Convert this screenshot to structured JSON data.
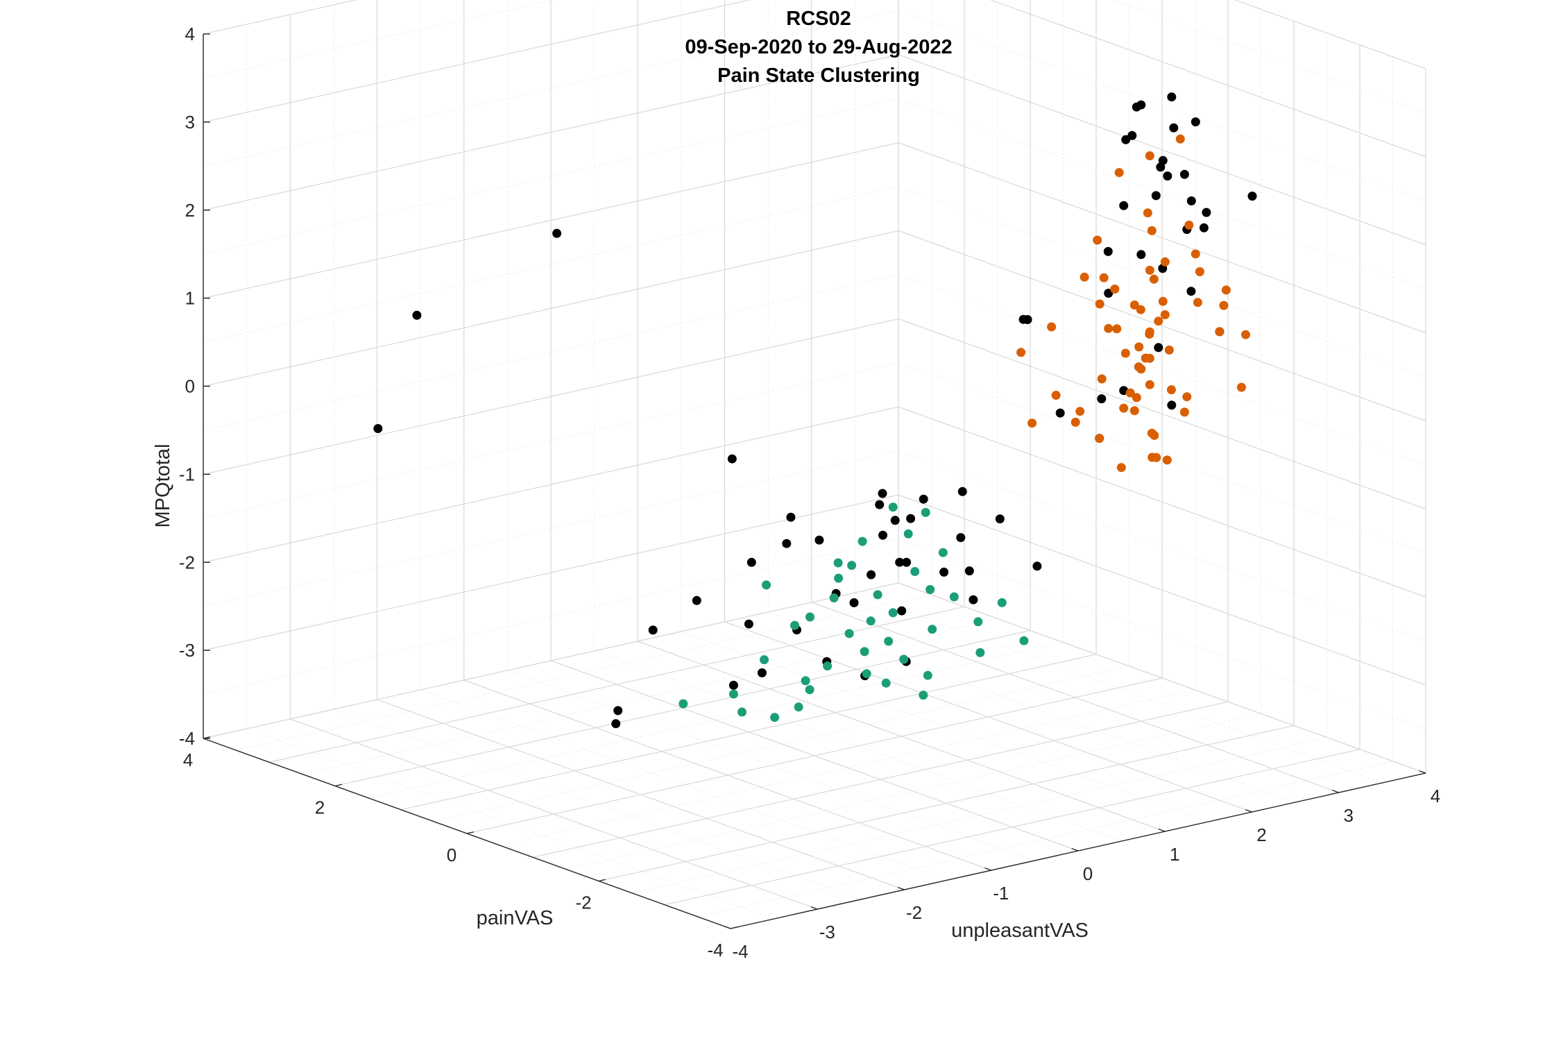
{
  "chart_data": {
    "type": "scatter3d",
    "title_lines": [
      "RCS02",
      "09-Sep-2020 to 29-Aug-2022",
      "Pain State Clustering"
    ],
    "xlabel": "unpleasantVAS",
    "ylabel": "painVAS",
    "zlabel": "MPQtotal",
    "xlim": [
      -4,
      4
    ],
    "ylim": [
      -4,
      4
    ],
    "zlim": [
      -4,
      4
    ],
    "xticks": [
      "-4",
      "-3",
      "-2",
      "-1",
      "0",
      "1",
      "2",
      "3",
      "4"
    ],
    "yticks": [
      "-4",
      "-2",
      "0",
      "2",
      "4"
    ],
    "zticks": [
      "-4",
      "-3",
      "-2",
      "-1",
      "0",
      "1",
      "2",
      "3",
      "4"
    ],
    "grid": true,
    "minor_grid": true,
    "series": [
      {
        "color": "#000000",
        "points": [
          [
            3.2,
            -1.2,
            3.1
          ],
          [
            3.0,
            -1.0,
            3.0
          ],
          [
            3.3,
            -1.1,
            2.7
          ],
          [
            3.1,
            -0.8,
            2.9
          ],
          [
            3.4,
            -1.3,
            2.8
          ],
          [
            2.9,
            -0.9,
            2.6
          ],
          [
            3.2,
            -0.6,
            2.5
          ],
          [
            3.1,
            -1.2,
            2.4
          ],
          [
            3.0,
            -1.4,
            2.3
          ],
          [
            3.3,
            -0.9,
            2.2
          ],
          [
            3.5,
            -1.0,
            2.1
          ],
          [
            3.2,
            -1.5,
            2.0
          ],
          [
            2.8,
            -1.0,
            1.9
          ],
          [
            3.4,
            -0.7,
            1.8
          ],
          [
            3.6,
            -1.2,
            1.7
          ],
          [
            3.3,
            -1.3,
            1.6
          ],
          [
            3.9,
            -1.5,
            1.9
          ],
          [
            3.0,
            -0.5,
            1.2
          ],
          [
            -1.6,
            1.8,
            1.8
          ],
          [
            -2.3,
            3.0,
            0.7
          ],
          [
            -2.9,
            2.8,
            -0.4
          ],
          [
            0.2,
            -1.7,
            -1.5
          ],
          [
            -0.2,
            -1.3,
            -1.1
          ],
          [
            0.1,
            -0.9,
            -0.8
          ],
          [
            -0.4,
            -0.6,
            -1.3
          ],
          [
            -0.8,
            -0.1,
            -1.6
          ],
          [
            -0.5,
            -0.3,
            -1.1
          ],
          [
            -0.7,
            -0.5,
            -1.3
          ],
          [
            0.9,
            0.2,
            -1.4
          ],
          [
            1.4,
            -0.4,
            -1.2
          ],
          [
            1.0,
            -0.9,
            -1.5
          ],
          [
            1.3,
            -1.1,
            -1.3
          ],
          [
            0.7,
            -0.3,
            -1.4
          ],
          [
            0.5,
            -0.8,
            -1.2
          ],
          [
            0.3,
            -1.0,
            -1.6
          ],
          [
            0.8,
            -0.6,
            -1.1
          ],
          [
            -0.9,
            0.6,
            -2.2
          ],
          [
            -1.1,
            1.0,
            -2.6
          ],
          [
            0.5,
            -0.2,
            -2.0
          ],
          [
            0.6,
            -0.5,
            -1.8
          ],
          [
            1.1,
            -0.9,
            -1.9
          ],
          [
            1.5,
            -1.4,
            -1.8
          ],
          [
            -0.3,
            0.6,
            -2.6
          ],
          [
            0.1,
            0.4,
            -2.7
          ],
          [
            0.4,
            0.2,
            -2.3
          ],
          [
            0.7,
            -0.4,
            -2.4
          ],
          [
            1.6,
            -0.3,
            -2.5
          ],
          [
            0.6,
            -0.6,
            -2.9
          ],
          [
            0.2,
            -0.5,
            -3.0
          ],
          [
            -0.3,
            0.4,
            -3.1
          ],
          [
            -0.4,
            0.7,
            -3.3
          ],
          [
            -1.2,
            1.4,
            -3.6
          ],
          [
            -1.3,
            1.3,
            -3.7
          ],
          [
            0.9,
            1.0,
            -3.4
          ],
          [
            1.1,
            2.7,
            -1.6
          ],
          [
            2.6,
            -0.3,
            -0.6
          ],
          [
            3.0,
            -0.4,
            -0.5
          ],
          [
            2.3,
            -0.2,
            0.5
          ],
          [
            2.1,
            -0.4,
            0.6
          ],
          [
            3.4,
            -0.8,
            1.0
          ],
          [
            3.5,
            -1.1,
            0.8
          ],
          [
            3.6,
            -1.4,
            0.4
          ],
          [
            2.8,
            -1.0,
            -0.2
          ],
          [
            3.2,
            -1.2,
            -0.4
          ],
          [
            2.7,
            -0.9,
            0.9
          ],
          [
            3.8,
            -0.9,
            1.4
          ],
          [
            3.0,
            -1.0,
            1.3
          ],
          [
            3.2,
            -1.0,
            0.2
          ],
          [
            2.9,
            -0.5,
            -0.9
          ],
          [
            0.0,
            -0.6,
            -2.1
          ]
        ]
      },
      {
        "color": "#d95f02",
        "points": [
          [
            3.1,
            -1.0,
            2.4
          ],
          [
            3.3,
            -1.2,
            2.6
          ],
          [
            2.9,
            -0.8,
            2.2
          ],
          [
            3.0,
            -1.1,
            1.8
          ],
          [
            3.2,
            -0.9,
            1.5
          ],
          [
            3.4,
            -1.3,
            1.3
          ],
          [
            3.1,
            -1.0,
            1.1
          ],
          [
            2.8,
            -0.7,
            1.0
          ],
          [
            3.3,
            -0.8,
            0.9
          ],
          [
            3.0,
            -0.6,
            0.8
          ],
          [
            3.5,
            -1.2,
            0.7
          ],
          [
            3.2,
            -1.1,
            0.6
          ],
          [
            2.7,
            -0.9,
            0.5
          ],
          [
            3.6,
            -1.4,
            0.4
          ],
          [
            3.1,
            -0.5,
            0.3
          ],
          [
            2.9,
            -1.2,
            0.2
          ],
          [
            3.4,
            -0.9,
            0.1
          ],
          [
            3.0,
            -1.0,
            0.0
          ],
          [
            3.2,
            -0.7,
            -0.1
          ],
          [
            2.8,
            -1.1,
            -0.2
          ],
          [
            3.3,
            -1.3,
            -0.3
          ],
          [
            3.1,
            -0.8,
            -0.4
          ],
          [
            2.6,
            -0.6,
            -0.5
          ],
          [
            3.5,
            -1.0,
            -0.6
          ],
          [
            3.0,
            -1.2,
            -0.7
          ],
          [
            3.2,
            -0.9,
            -0.8
          ],
          [
            2.9,
            -0.5,
            -0.9
          ],
          [
            3.1,
            -1.1,
            -1.0
          ],
          [
            2.7,
            -0.8,
            -0.1
          ],
          [
            3.4,
            -0.6,
            0.2
          ],
          [
            3.6,
            -1.5,
            0.9
          ],
          [
            2.5,
            -0.3,
            0.4
          ],
          [
            2.4,
            -0.5,
            -0.3
          ],
          [
            3.7,
            -1.6,
            -0.2
          ],
          [
            3.8,
            -1.2,
            0.6
          ],
          [
            2.3,
            -0.1,
            0.1
          ],
          [
            3.9,
            -1.4,
            0.3
          ],
          [
            2.2,
            -0.4,
            -0.6
          ],
          [
            3.2,
            -1.0,
            0.5
          ],
          [
            3.0,
            -0.9,
            0.7
          ],
          [
            3.1,
            -1.0,
            -0.2
          ],
          [
            3.1,
            -1.0,
            0.1
          ],
          [
            3.1,
            -1.0,
            0.4
          ],
          [
            3.0,
            -0.9,
            -0.5
          ],
          [
            3.2,
            -1.1,
            1.2
          ],
          [
            2.8,
            -0.6,
            1.4
          ],
          [
            3.4,
            -1.2,
            1.6
          ],
          [
            2.6,
            -0.9,
            0.8
          ],
          [
            3.5,
            -0.8,
            -0.4
          ],
          [
            2.9,
            -1.3,
            -0.9
          ],
          [
            3.3,
            -1.0,
            -1.1
          ],
          [
            3.0,
            -0.7,
            -1.2
          ],
          [
            2.7,
            -0.4,
            -0.7
          ],
          [
            3.6,
            -1.1,
            1.0
          ],
          [
            2.5,
            -0.8,
            1.1
          ],
          [
            3.2,
            -0.5,
            0.0
          ],
          [
            2.9,
            -1.1,
            0.3
          ],
          [
            3.1,
            -1.2,
            0.8
          ],
          [
            3.3,
            -0.6,
            0.5
          ],
          [
            2.8,
            -1.0,
            -0.4
          ]
        ]
      },
      {
        "color": "#1b9e77",
        "points": [
          [
            0.6,
            -0.4,
            -1.2
          ],
          [
            0.9,
            -0.5,
            -1.3
          ],
          [
            0.4,
            -0.2,
            -1.6
          ],
          [
            0.7,
            -0.6,
            -1.9
          ],
          [
            0.2,
            -0.1,
            -2.0
          ],
          [
            0.8,
            -0.7,
            -2.1
          ],
          [
            0.5,
            -0.3,
            -2.2
          ],
          [
            0.3,
            0.1,
            -2.3
          ],
          [
            1.0,
            -0.8,
            -2.2
          ],
          [
            0.6,
            -0.4,
            -2.4
          ],
          [
            0.1,
            0.2,
            -2.5
          ],
          [
            0.9,
            -0.6,
            -2.6
          ],
          [
            0.4,
            0.0,
            -2.7
          ],
          [
            0.7,
            -0.2,
            -2.8
          ],
          [
            1.2,
            -0.9,
            -2.5
          ],
          [
            0.0,
            0.3,
            -2.6
          ],
          [
            0.5,
            -0.1,
            -2.9
          ],
          [
            0.8,
            -0.3,
            -3.0
          ],
          [
            1.3,
            -0.8,
            -2.9
          ],
          [
            -0.2,
            0.5,
            -3.0
          ],
          [
            0.3,
            0.2,
            -3.1
          ],
          [
            0.6,
            0.0,
            -3.2
          ],
          [
            1.0,
            -0.4,
            -3.2
          ],
          [
            -0.4,
            0.7,
            -3.4
          ],
          [
            0.2,
            0.4,
            -3.3
          ],
          [
            0.4,
            0.6,
            -3.5
          ],
          [
            0.9,
            0.1,
            -3.4
          ],
          [
            1.1,
            -0.2,
            -3.5
          ],
          [
            -0.6,
            1.2,
            -3.6
          ],
          [
            0.0,
            1.1,
            -3.8
          ],
          [
            0.3,
            1.0,
            -3.9
          ],
          [
            0.5,
            0.9,
            -3.8
          ],
          [
            0.7,
            -0.5,
            -1.5
          ],
          [
            1.4,
            -1.0,
            -2.3
          ],
          [
            -0.1,
            0.6,
            -2.2
          ],
          [
            0.5,
            0.3,
            -2.0
          ],
          [
            1.1,
            -0.5,
            -1.8
          ],
          [
            0.8,
            0.2,
            -2.7
          ],
          [
            0.2,
            -0.3,
            -1.8
          ],
          [
            1.5,
            -1.2,
            -2.7
          ]
        ]
      }
    ]
  }
}
